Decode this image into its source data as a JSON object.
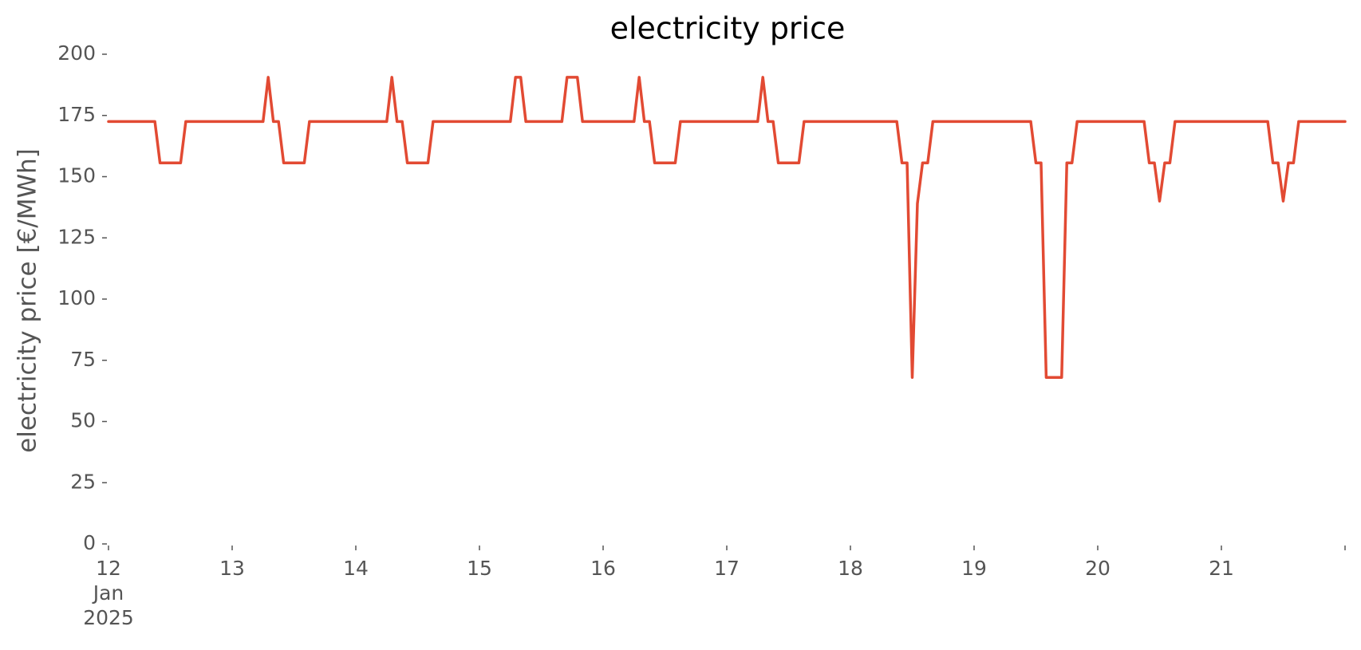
{
  "chart_data": {
    "type": "line",
    "title": "electricity price",
    "xlabel": "",
    "ylabel": "electricity price [€/MWh]",
    "ylim": [
      0,
      200
    ],
    "yticks": [
      0,
      25,
      50,
      75,
      100,
      125,
      150,
      175,
      200
    ],
    "ytick_labels": [
      "0",
      "25",
      "50",
      "75",
      "100",
      "125",
      "150",
      "175",
      "200"
    ],
    "xlim": [
      "2025-01-12 00:00",
      "2025-01-22 00:00"
    ],
    "xticks": [
      {
        "x": "2025-01-12",
        "lines": [
          "12",
          "Jan",
          "2025"
        ]
      },
      {
        "x": "2025-01-13",
        "lines": [
          "13"
        ]
      },
      {
        "x": "2025-01-14",
        "lines": [
          "14"
        ]
      },
      {
        "x": "2025-01-15",
        "lines": [
          "15"
        ]
      },
      {
        "x": "2025-01-16",
        "lines": [
          "16"
        ]
      },
      {
        "x": "2025-01-17",
        "lines": [
          "17"
        ]
      },
      {
        "x": "2025-01-18",
        "lines": [
          "18"
        ]
      },
      {
        "x": "2025-01-19",
        "lines": [
          "19"
        ]
      },
      {
        "x": "2025-01-20",
        "lines": [
          "20"
        ]
      },
      {
        "x": "2025-01-21",
        "lines": [
          "21"
        ]
      },
      {
        "x": "2025-01-22",
        "lines": [
          ""
        ]
      }
    ],
    "grid": false,
    "series": [
      {
        "color": "#e24a33",
        "points": [
          [
            "2025-01-12 00:00",
            172.5
          ],
          [
            "2025-01-12 09:00",
            172.5
          ],
          [
            "2025-01-12 10:00",
            155.6
          ],
          [
            "2025-01-12 14:00",
            155.6
          ],
          [
            "2025-01-12 15:00",
            172.5
          ],
          [
            "2025-01-13 06:00",
            172.5
          ],
          [
            "2025-01-13 07:00",
            190.6
          ],
          [
            "2025-01-13 08:00",
            172.5
          ],
          [
            "2025-01-13 09:00",
            172.5
          ],
          [
            "2025-01-13 10:00",
            155.6
          ],
          [
            "2025-01-13 14:00",
            155.6
          ],
          [
            "2025-01-13 15:00",
            172.5
          ],
          [
            "2025-01-14 06:00",
            172.5
          ],
          [
            "2025-01-14 07:00",
            190.6
          ],
          [
            "2025-01-14 08:00",
            172.5
          ],
          [
            "2025-01-14 09:00",
            172.5
          ],
          [
            "2025-01-14 10:00",
            155.6
          ],
          [
            "2025-01-14 14:00",
            155.6
          ],
          [
            "2025-01-14 15:00",
            172.5
          ],
          [
            "2025-01-15 06:00",
            172.5
          ],
          [
            "2025-01-15 07:00",
            190.6
          ],
          [
            "2025-01-15 08:00",
            190.6
          ],
          [
            "2025-01-15 09:00",
            172.5
          ],
          [
            "2025-01-15 16:00",
            172.5
          ],
          [
            "2025-01-15 17:00",
            190.6
          ],
          [
            "2025-01-15 19:00",
            190.6
          ],
          [
            "2025-01-15 20:00",
            172.5
          ],
          [
            "2025-01-16 06:00",
            172.5
          ],
          [
            "2025-01-16 07:00",
            190.6
          ],
          [
            "2025-01-16 08:00",
            172.5
          ],
          [
            "2025-01-16 09:00",
            172.5
          ],
          [
            "2025-01-16 10:00",
            155.6
          ],
          [
            "2025-01-16 14:00",
            155.6
          ],
          [
            "2025-01-16 15:00",
            172.5
          ],
          [
            "2025-01-17 06:00",
            172.5
          ],
          [
            "2025-01-17 07:00",
            190.6
          ],
          [
            "2025-01-17 08:00",
            172.5
          ],
          [
            "2025-01-17 09:00",
            172.5
          ],
          [
            "2025-01-17 10:00",
            155.6
          ],
          [
            "2025-01-17 14:00",
            155.6
          ],
          [
            "2025-01-17 15:00",
            172.5
          ],
          [
            "2025-01-18 09:00",
            172.5
          ],
          [
            "2025-01-18 10:00",
            155.6
          ],
          [
            "2025-01-18 11:00",
            155.6
          ],
          [
            "2025-01-18 12:00",
            68.0
          ],
          [
            "2025-01-18 13:00",
            139.0
          ],
          [
            "2025-01-18 14:00",
            155.6
          ],
          [
            "2025-01-18 15:00",
            155.6
          ],
          [
            "2025-01-18 16:00",
            172.5
          ],
          [
            "2025-01-19 11:00",
            172.5
          ],
          [
            "2025-01-19 12:00",
            155.6
          ],
          [
            "2025-01-19 13:00",
            155.6
          ],
          [
            "2025-01-19 14:00",
            68.0
          ],
          [
            "2025-01-19 17:00",
            68.0
          ],
          [
            "2025-01-19 18:00",
            155.6
          ],
          [
            "2025-01-19 19:00",
            155.6
          ],
          [
            "2025-01-19 20:00",
            172.5
          ],
          [
            "2025-01-20 09:00",
            172.5
          ],
          [
            "2025-01-20 10:00",
            155.6
          ],
          [
            "2025-01-20 11:00",
            155.6
          ],
          [
            "2025-01-20 12:00",
            140.0
          ],
          [
            "2025-01-20 13:00",
            155.6
          ],
          [
            "2025-01-20 14:00",
            155.6
          ],
          [
            "2025-01-20 15:00",
            172.5
          ],
          [
            "2025-01-21 09:00",
            172.5
          ],
          [
            "2025-01-21 10:00",
            155.6
          ],
          [
            "2025-01-21 11:00",
            155.6
          ],
          [
            "2025-01-21 12:00",
            140.0
          ],
          [
            "2025-01-21 13:00",
            155.6
          ],
          [
            "2025-01-21 14:00",
            155.6
          ],
          [
            "2025-01-21 15:00",
            172.5
          ],
          [
            "2025-01-22 00:00",
            172.5
          ]
        ]
      }
    ]
  }
}
